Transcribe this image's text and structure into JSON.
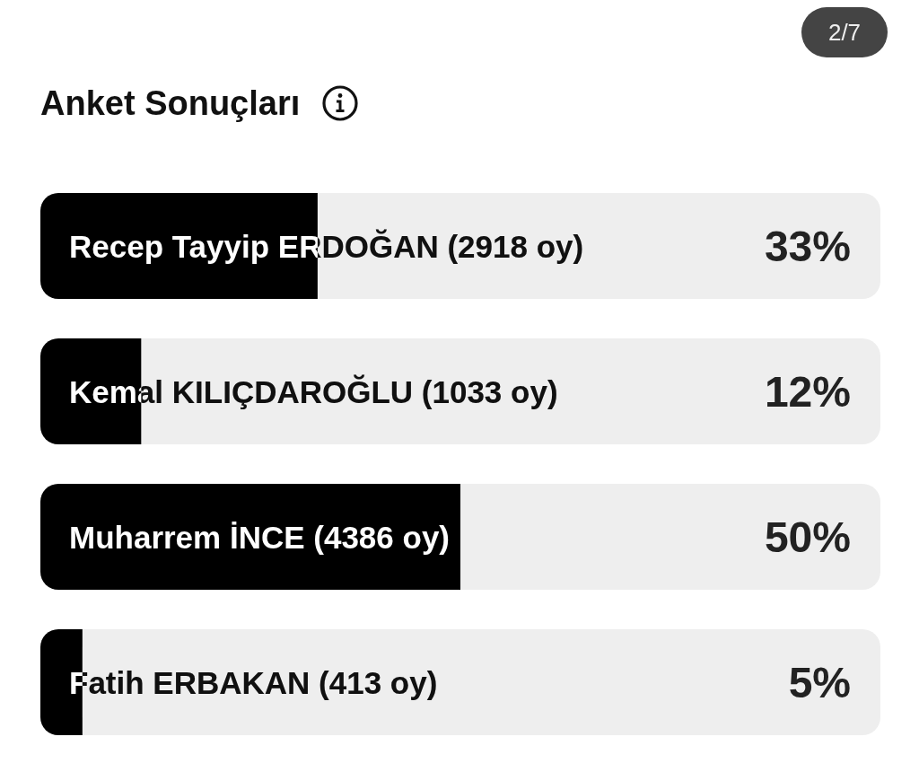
{
  "chart_data": {
    "type": "bar",
    "orientation": "horizontal",
    "title": "Anket Sonuçları",
    "categories": [
      "Recep Tayyip ERDOĞAN (2918 oy)",
      "Kemal KILIÇDAROĞLU (1033 oy)",
      "Muharrem İNCE (4386 oy)",
      "Fatih ERBAKAN (413 oy)"
    ],
    "values": [
      33,
      12,
      50,
      5
    ],
    "color": "#000000",
    "xlim": [
      0,
      100
    ],
    "value_labels": [
      "33%",
      "12%",
      "50%",
      "5%"
    ],
    "tick_labels": "y",
    "grid": false,
    "annotations": [
      "2/7"
    ]
  }
}
